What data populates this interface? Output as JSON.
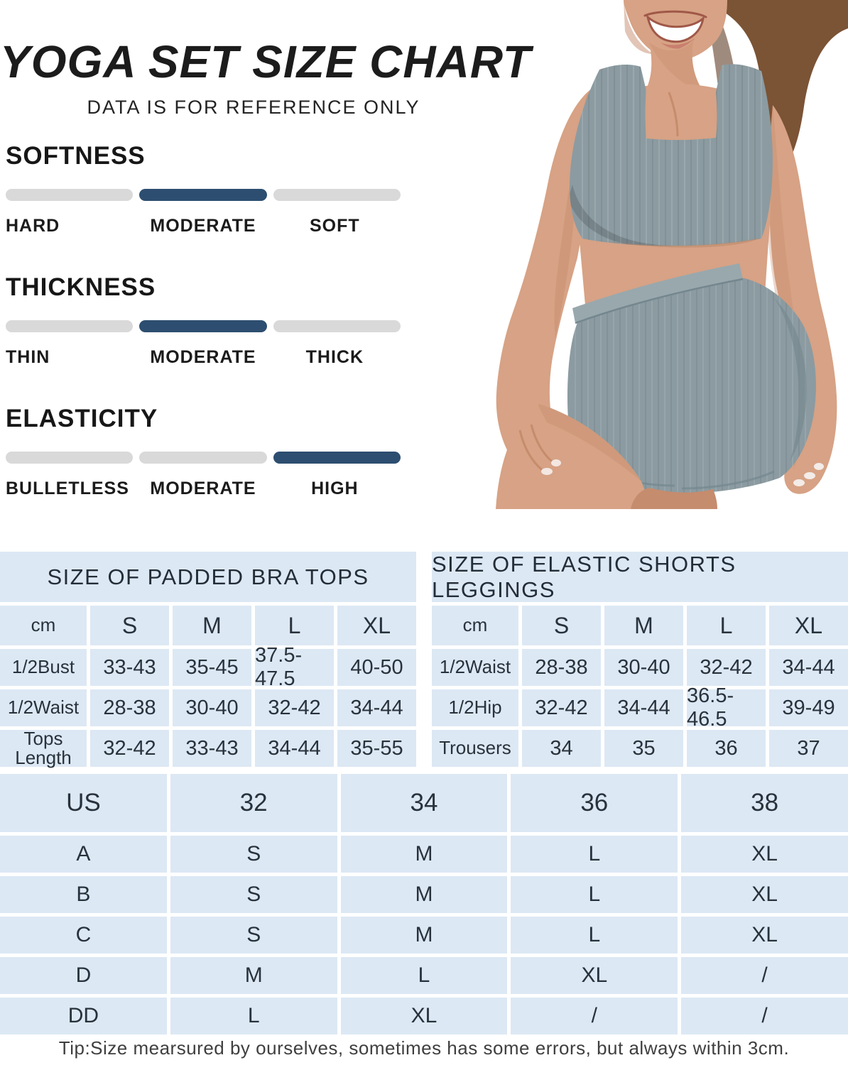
{
  "page": {
    "title": "YOGA SET SIZE CHART",
    "subtitle": "DATA IS FOR REFERENCE ONLY",
    "tip": "Tip:Size mearsured by ourselves, sometimes has some errors, but always within 3cm."
  },
  "colors": {
    "active_bar": "#2d4e70",
    "inactive_bar": "#d9d9d9",
    "table_cell_bg": "#dce8f4",
    "garment": "#8b9ba1"
  },
  "features": [
    {
      "name": "SOFTNESS",
      "options": [
        "HARD",
        "MODERATE",
        "SOFT"
      ],
      "active_index": 1
    },
    {
      "name": "THICKNESS",
      "options": [
        "THIN",
        "MODERATE",
        "THICK"
      ],
      "active_index": 1
    },
    {
      "name": "ELASTICITY",
      "options": [
        "BULLETLESS",
        "MODERATE",
        "HIGH"
      ],
      "active_index": 2
    }
  ],
  "size_tables": [
    {
      "id": "bra-tops",
      "title": "SIZE OF PADDED BRA TOPS",
      "columns": [
        "cm",
        "S",
        "M",
        "L",
        "XL"
      ],
      "rows": [
        {
          "label": "1/2Bust",
          "values": [
            "33-43",
            "35-45",
            "37.5-47.5",
            "40-50"
          ]
        },
        {
          "label": "1/2Waist",
          "values": [
            "28-38",
            "30-40",
            "32-42",
            "34-44"
          ]
        },
        {
          "label": "Tops Length",
          "values": [
            "32-42",
            "33-43",
            "34-44",
            "35-55"
          ]
        }
      ]
    },
    {
      "id": "shorts-leggings",
      "title": "SIZE OF ELASTIC SHORTS LEGGINGS",
      "columns": [
        "cm",
        "S",
        "M",
        "L",
        "XL"
      ],
      "rows": [
        {
          "label": "1/2Waist",
          "values": [
            "28-38",
            "30-40",
            "32-42",
            "34-44"
          ]
        },
        {
          "label": "1/2Hip",
          "values": [
            "32-42",
            "34-44",
            "36.5-46.5",
            "39-49"
          ]
        },
        {
          "label": "Trousers",
          "values": [
            "34",
            "35",
            "36",
            "37"
          ]
        }
      ]
    }
  ],
  "us_size_table": {
    "header": [
      "US",
      "32",
      "34",
      "36",
      "38"
    ],
    "rows": [
      {
        "label": "A",
        "values": [
          "S",
          "M",
          "L",
          "XL"
        ]
      },
      {
        "label": "B",
        "values": [
          "S",
          "M",
          "L",
          "XL"
        ]
      },
      {
        "label": "C",
        "values": [
          "S",
          "M",
          "L",
          "XL"
        ]
      },
      {
        "label": "D",
        "values": [
          "M",
          "L",
          "XL",
          "/"
        ]
      },
      {
        "label": "DD",
        "values": [
          "L",
          "XL",
          "/",
          "/"
        ]
      }
    ]
  }
}
